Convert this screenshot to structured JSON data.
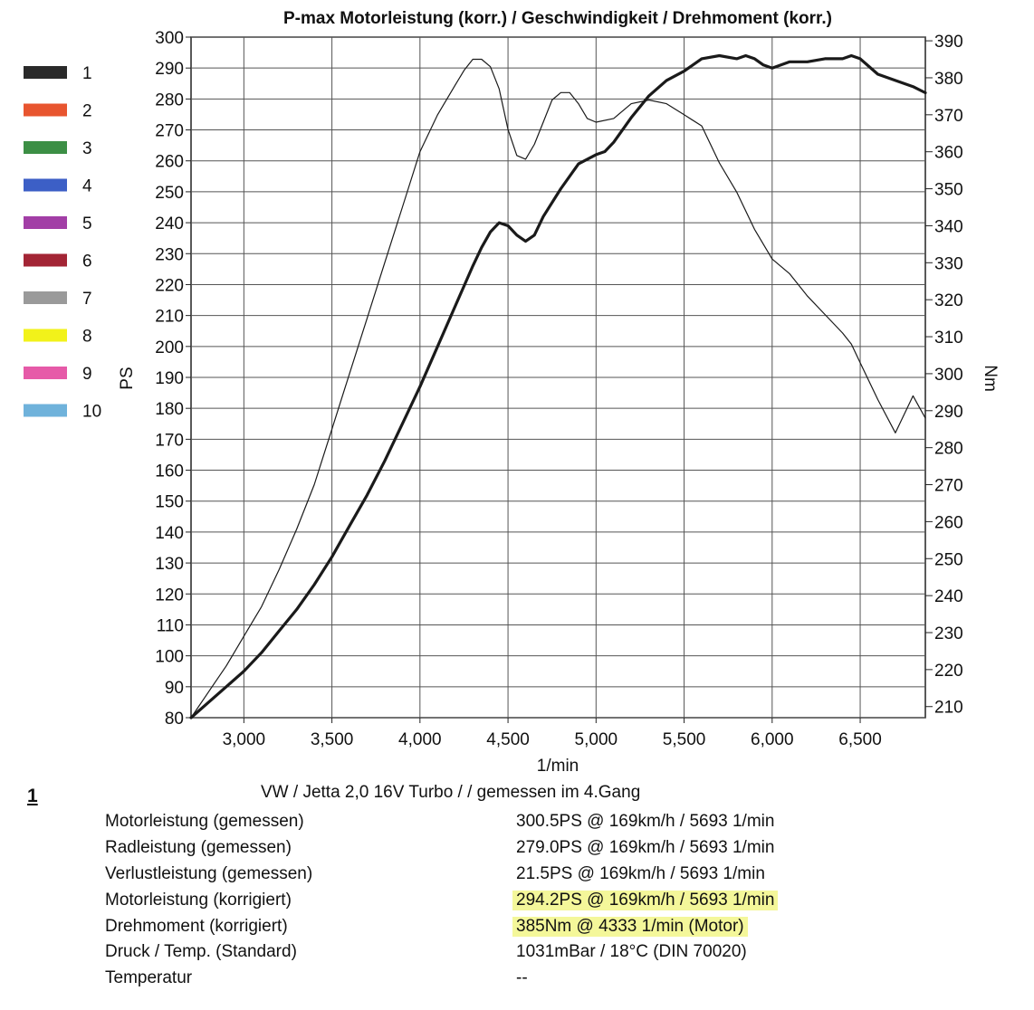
{
  "header": {
    "title": "P-max Motorleistung (korr.) / Geschwindigkeit / Drehmoment (korr.)"
  },
  "legend": {
    "items": [
      {
        "label": "1",
        "color": "#2a2a2a"
      },
      {
        "label": "2",
        "color": "#e8552f"
      },
      {
        "label": "3",
        "color": "#3c8f45"
      },
      {
        "label": "4",
        "color": "#3c5fc6"
      },
      {
        "label": "5",
        "color": "#a23ea6"
      },
      {
        "label": "6",
        "color": "#a32535"
      },
      {
        "label": "7",
        "color": "#9a9a9a"
      },
      {
        "label": "8",
        "color": "#f2f21a"
      },
      {
        "label": "9",
        "color": "#e65aa8"
      },
      {
        "label": "10",
        "color": "#6fb2db"
      }
    ]
  },
  "chart_data": {
    "type": "line",
    "title": "P-max Motorleistung (korr.) / Geschwindigkeit / Drehmoment (korr.)",
    "xlabel": "1/min",
    "ylabel": "PS",
    "y2label": "Nm",
    "xlim": [
      2700,
      6870
    ],
    "ylim": [
      80,
      300
    ],
    "y2lim": [
      207,
      391
    ],
    "x_ticks": [
      3000,
      3500,
      4000,
      4500,
      5000,
      5500,
      6000,
      6500
    ],
    "x_tick_labels": [
      "3,000",
      "3,500",
      "4,000",
      "4,500",
      "5,000",
      "5,500",
      "6,000",
      "6,500"
    ],
    "y_ticks": [
      80,
      90,
      100,
      110,
      120,
      130,
      140,
      150,
      160,
      170,
      180,
      190,
      200,
      210,
      220,
      230,
      240,
      250,
      260,
      270,
      280,
      290,
      300
    ],
    "y2_ticks": [
      210,
      220,
      230,
      240,
      250,
      260,
      270,
      280,
      290,
      300,
      310,
      320,
      330,
      340,
      350,
      360,
      370,
      380,
      390
    ],
    "grid": true,
    "series": [
      {
        "name": "",
        "axis": "left",
        "unit": "PS",
        "line_weight": "bold",
        "x": [
          2700,
          2800,
          2900,
          3000,
          3100,
          3200,
          3300,
          3400,
          3500,
          3600,
          3700,
          3800,
          3900,
          4000,
          4100,
          4200,
          4300,
          4350,
          4400,
          4450,
          4500,
          4550,
          4600,
          4650,
          4700,
          4800,
          4900,
          5000,
          5050,
          5100,
          5200,
          5300,
          5400,
          5500,
          5600,
          5700,
          5800,
          5850,
          5900,
          5950,
          6000,
          6100,
          6200,
          6300,
          6400,
          6450,
          6500,
          6600,
          6700,
          6800,
          6870
        ],
        "y": [
          80,
          85,
          90,
          95,
          101,
          108,
          115,
          123,
          132,
          142,
          152,
          163,
          175,
          187,
          200,
          213,
          226,
          232,
          237,
          240,
          239,
          236,
          234,
          236,
          242,
          251,
          259,
          262,
          263,
          266,
          274,
          281,
          286,
          289,
          293,
          294,
          293,
          294,
          293,
          291,
          290,
          292,
          292,
          293,
          293,
          294,
          293,
          288,
          286,
          284,
          282
        ]
      },
      {
        "name": "",
        "axis": "right",
        "unit": "Nm",
        "line_weight": "thin",
        "x": [
          2700,
          2800,
          2900,
          3000,
          3100,
          3200,
          3300,
          3400,
          3500,
          3600,
          3700,
          3800,
          3900,
          4000,
          4100,
          4200,
          4250,
          4300,
          4350,
          4400,
          4450,
          4500,
          4550,
          4600,
          4650,
          4700,
          4750,
          4800,
          4850,
          4900,
          4950,
          5000,
          5100,
          5200,
          5300,
          5400,
          5500,
          5600,
          5700,
          5800,
          5900,
          6000,
          6100,
          6200,
          6300,
          6400,
          6450,
          6500,
          6600,
          6700,
          6800,
          6870
        ],
        "y": [
          207,
          214,
          221,
          229,
          237,
          247,
          258,
          270,
          285,
          300,
          315,
          330,
          345,
          360,
          370,
          378,
          382,
          385,
          385,
          383,
          377,
          366,
          359,
          358,
          362,
          368,
          374,
          376,
          376,
          373,
          369,
          368,
          369,
          373,
          374,
          373,
          370,
          367,
          357,
          349,
          339,
          331,
          327,
          321,
          316,
          311,
          308,
          303,
          293,
          284,
          294,
          288
        ]
      }
    ]
  },
  "footer": {
    "run_id": "1",
    "vehicle": "VW / Jetta 2,0 16V Turbo /  / gemessen im 4.Gang",
    "results": [
      {
        "label": "Motorleistung (gemessen)",
        "value": "300.5PS @ 169km/h / 5693 1/min"
      },
      {
        "label": "Radleistung (gemessen)",
        "value": "279.0PS @ 169km/h / 5693 1/min"
      },
      {
        "label": "Verlustleistung (gemessen)",
        "value": "21.5PS @ 169km/h / 5693 1/min"
      },
      {
        "label": "Motorleistung (korrigiert)",
        "value": "294.2PS @ 169km/h / 5693 1/min",
        "highlight": true
      },
      {
        "label": "Drehmoment (korrigiert)",
        "value": "385Nm @ 4333 1/min (Motor)",
        "highlight": true
      },
      {
        "label": "Druck / Temp. (Standard)",
        "value": "1031mBar / 18°C  (DIN 70020)"
      },
      {
        "label": "Temperatur",
        "value": "--"
      }
    ],
    "highlight_color": "#f4f79a"
  }
}
